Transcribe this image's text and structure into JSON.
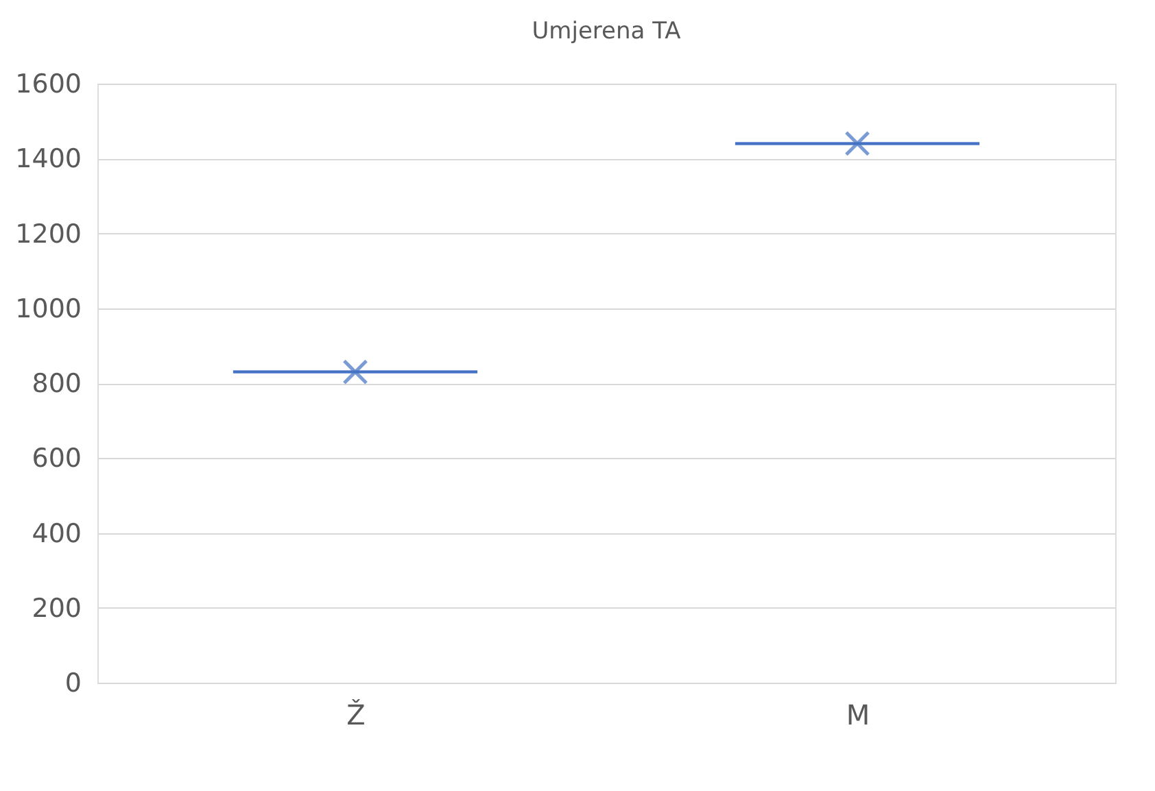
{
  "chart_data": {
    "type": "box",
    "title": "Umjerena TA",
    "categories": [
      "Ž",
      "M"
    ],
    "boxes": [
      {
        "low": 830,
        "q1": 830,
        "median": 830,
        "q3": 830,
        "high": 830,
        "mean": 830
      },
      {
        "low": 1440,
        "q1": 1440,
        "median": 1440,
        "q3": 1440,
        "high": 1440,
        "mean": 1440
      }
    ],
    "color": "#4472c4",
    "marker": "cross",
    "ylim": [
      0,
      1600
    ],
    "yticks": [
      0,
      200,
      400,
      600,
      800,
      1000,
      1200,
      1400,
      1600
    ],
    "grid": "y"
  }
}
